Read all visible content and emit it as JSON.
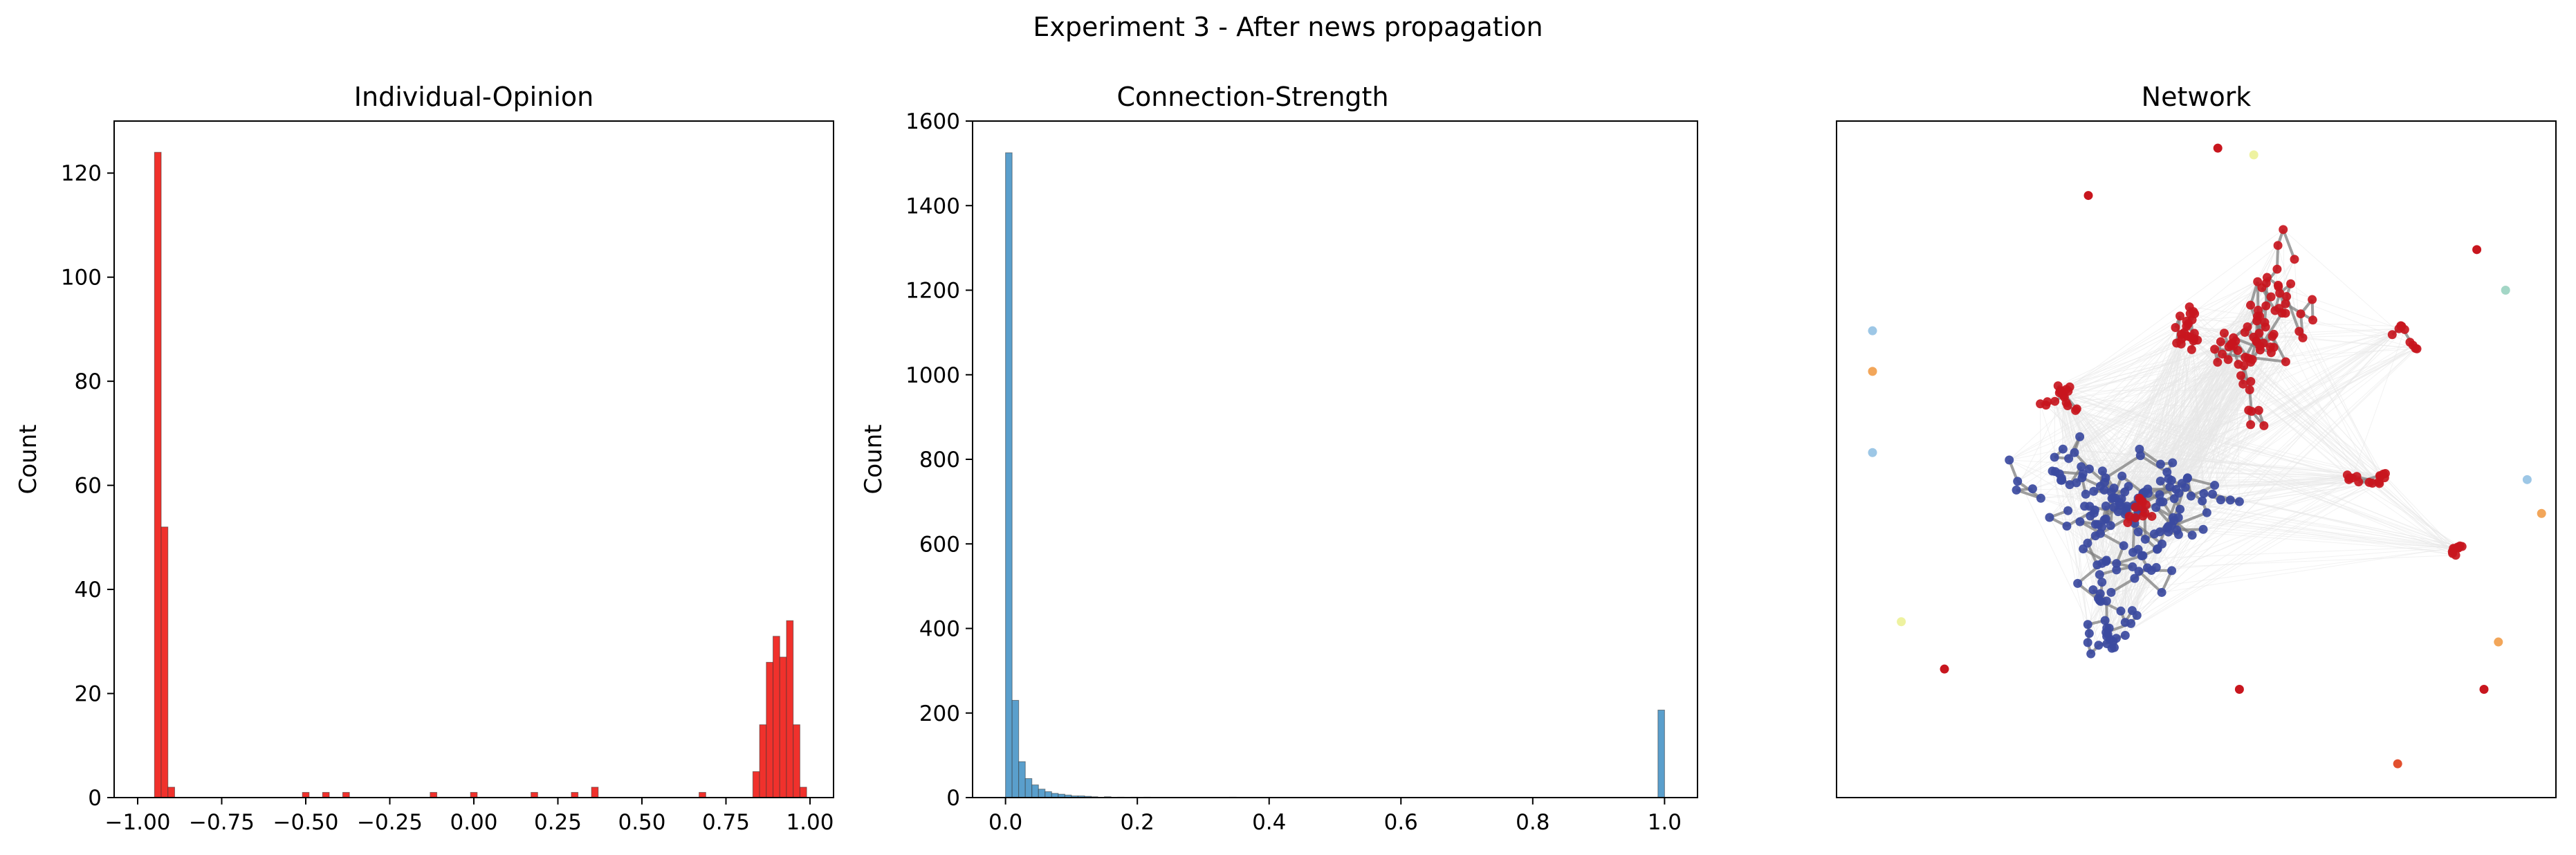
{
  "suptitle": "Experiment 3 - After news propagation",
  "chart_data": [
    {
      "type": "bar",
      "title": "Individual-Opinion",
      "xlabel": "",
      "ylabel": "Count",
      "xlim": [
        -1.07,
        1.07
      ],
      "ylim": [
        0,
        130
      ],
      "xticks": [
        "-1.00",
        "-0.75",
        "-0.50",
        "-0.25",
        "0.00",
        "0.25",
        "0.50",
        "0.75",
        "1.00"
      ],
      "yticks": [
        "0",
        "20",
        "40",
        "60",
        "80",
        "100",
        "120"
      ],
      "color": "#f0312c",
      "bins": [
        {
          "x0": -0.95,
          "x1": -0.93,
          "count": 124
        },
        {
          "x0": -0.93,
          "x1": -0.91,
          "count": 52
        },
        {
          "x0": -0.91,
          "x1": -0.89,
          "count": 2
        },
        {
          "x0": -0.51,
          "x1": -0.49,
          "count": 1
        },
        {
          "x0": -0.45,
          "x1": -0.43,
          "count": 1
        },
        {
          "x0": -0.39,
          "x1": -0.37,
          "count": 1
        },
        {
          "x0": -0.13,
          "x1": -0.11,
          "count": 1
        },
        {
          "x0": -0.01,
          "x1": 0.01,
          "count": 1
        },
        {
          "x0": 0.17,
          "x1": 0.19,
          "count": 1
        },
        {
          "x0": 0.29,
          "x1": 0.31,
          "count": 1
        },
        {
          "x0": 0.35,
          "x1": 0.37,
          "count": 2
        },
        {
          "x0": 0.67,
          "x1": 0.69,
          "count": 1
        },
        {
          "x0": 0.83,
          "x1": 0.85,
          "count": 5
        },
        {
          "x0": 0.85,
          "x1": 0.87,
          "count": 14
        },
        {
          "x0": 0.87,
          "x1": 0.89,
          "count": 26
        },
        {
          "x0": 0.89,
          "x1": 0.91,
          "count": 31
        },
        {
          "x0": 0.91,
          "x1": 0.93,
          "count": 27
        },
        {
          "x0": 0.93,
          "x1": 0.95,
          "count": 34
        },
        {
          "x0": 0.95,
          "x1": 0.97,
          "count": 14
        },
        {
          "x0": 0.97,
          "x1": 0.99,
          "count": 2
        }
      ]
    },
    {
      "type": "bar",
      "title": "Connection-Strength",
      "xlabel": "",
      "ylabel": "Count",
      "xlim": [
        -0.05,
        1.05
      ],
      "ylim": [
        0,
        1600
      ],
      "xticks": [
        "0.0",
        "0.2",
        "0.4",
        "0.6",
        "0.8",
        "1.0"
      ],
      "yticks": [
        "0",
        "200",
        "400",
        "600",
        "800",
        "1000",
        "1200",
        "1400",
        "1600"
      ],
      "color": "#5a9fcc",
      "bins": [
        {
          "x0": 0.0,
          "x1": 0.01,
          "count": 1525
        },
        {
          "x0": 0.01,
          "x1": 0.02,
          "count": 230
        },
        {
          "x0": 0.02,
          "x1": 0.03,
          "count": 85
        },
        {
          "x0": 0.03,
          "x1": 0.04,
          "count": 45
        },
        {
          "x0": 0.04,
          "x1": 0.05,
          "count": 30
        },
        {
          "x0": 0.05,
          "x1": 0.06,
          "count": 20
        },
        {
          "x0": 0.06,
          "x1": 0.07,
          "count": 14
        },
        {
          "x0": 0.07,
          "x1": 0.08,
          "count": 10
        },
        {
          "x0": 0.08,
          "x1": 0.09,
          "count": 8
        },
        {
          "x0": 0.09,
          "x1": 0.1,
          "count": 6
        },
        {
          "x0": 0.1,
          "x1": 0.11,
          "count": 4
        },
        {
          "x0": 0.11,
          "x1": 0.12,
          "count": 4
        },
        {
          "x0": 0.12,
          "x1": 0.13,
          "count": 3
        },
        {
          "x0": 0.13,
          "x1": 0.14,
          "count": 2
        },
        {
          "x0": 0.15,
          "x1": 0.16,
          "count": 2
        },
        {
          "x0": 0.17,
          "x1": 0.18,
          "count": 1
        },
        {
          "x0": 0.19,
          "x1": 0.2,
          "count": 1
        },
        {
          "x0": 0.21,
          "x1": 0.22,
          "count": 1
        },
        {
          "x0": 0.34,
          "x1": 0.35,
          "count": 1
        },
        {
          "x0": 0.99,
          "x1": 1.0,
          "count": 207
        }
      ]
    },
    {
      "type": "network",
      "title": "Network",
      "xlim": [
        0,
        100
      ],
      "ylim": [
        0,
        100
      ],
      "colors": {
        "negative": "#3b4aa0",
        "positive": "#c8161e",
        "edge_dense": "#e8e8e8",
        "edge_strong": "#7f7f7f",
        "isolate_light_blue": "#9dc7e6",
        "isolate_orange": "#f2a65a",
        "isolate_yellow": "#eef2a0",
        "isolate_teal": "#a3d6c6",
        "isolate_red_orange": "#e2502f"
      },
      "clusters": [
        {
          "group": "negative",
          "cx": 40,
          "cy": 42,
          "rx": 16,
          "ry": 13,
          "n": 150
        },
        {
          "group": "negative",
          "cx": 38,
          "cy": 25,
          "rx": 5,
          "ry": 7,
          "n": 28
        },
        {
          "group": "positive",
          "cx": 60,
          "cy": 67,
          "rx": 8,
          "ry": 18,
          "n": 75
        },
        {
          "group": "positive",
          "cx": 49,
          "cy": 70,
          "rx": 4,
          "ry": 8,
          "n": 22
        },
        {
          "group": "positive",
          "cx": 29,
          "cy": 60,
          "rx": 5,
          "ry": 4,
          "n": 18
        },
        {
          "group": "positive",
          "cx": 74,
          "cy": 47,
          "rx": 6,
          "ry": 3,
          "n": 15
        },
        {
          "group": "positive",
          "cx": 86,
          "cy": 37,
          "rx": 2,
          "ry": 3,
          "n": 10
        },
        {
          "group": "positive",
          "cx": 43,
          "cy": 42,
          "rx": 5,
          "ry": 4,
          "n": 12
        },
        {
          "group": "positive",
          "cx": 79,
          "cy": 68,
          "rx": 4,
          "ry": 4,
          "n": 9
        }
      ],
      "isolates": [
        {
          "x": 53,
          "y": 96,
          "color": "positive"
        },
        {
          "x": 58,
          "y": 95,
          "color": "isolate_yellow"
        },
        {
          "x": 35,
          "y": 89,
          "color": "positive"
        },
        {
          "x": 89,
          "y": 81,
          "color": "positive"
        },
        {
          "x": 93,
          "y": 75,
          "color": "isolate_teal"
        },
        {
          "x": 5,
          "y": 69,
          "color": "isolate_light_blue"
        },
        {
          "x": 5,
          "y": 63,
          "color": "isolate_orange"
        },
        {
          "x": 5,
          "y": 51,
          "color": "isolate_light_blue"
        },
        {
          "x": 96,
          "y": 47,
          "color": "isolate_light_blue"
        },
        {
          "x": 98,
          "y": 42,
          "color": "isolate_orange"
        },
        {
          "x": 9,
          "y": 26,
          "color": "isolate_yellow"
        },
        {
          "x": 15,
          "y": 19,
          "color": "positive"
        },
        {
          "x": 92,
          "y": 23,
          "color": "isolate_orange"
        },
        {
          "x": 90,
          "y": 16,
          "color": "positive"
        },
        {
          "x": 56,
          "y": 16,
          "color": "positive"
        },
        {
          "x": 78,
          "y": 5,
          "color": "isolate_red_orange"
        }
      ]
    }
  ]
}
